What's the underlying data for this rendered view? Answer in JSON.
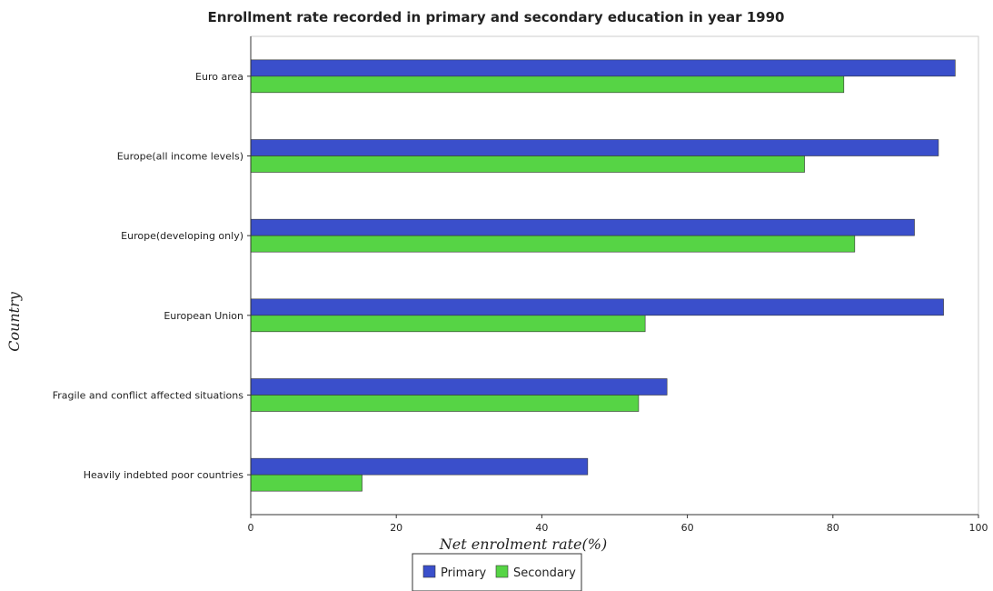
{
  "chart_data": {
    "type": "bar",
    "orientation": "horizontal",
    "title": "Enrollment rate recorded in primary and secondary education in year 1990",
    "xlabel": "Net enrolment rate(%)",
    "ylabel": "Country",
    "xlim": [
      0,
      100
    ],
    "xticks": [
      0,
      20,
      40,
      60,
      80,
      100
    ],
    "grid": false,
    "legend_position": "bottom-center",
    "categories": [
      "Euro area",
      "Europe(all income levels)",
      "Europe(developing only)",
      "European Union",
      "Fragile and conflict affected situations",
      "Heavily indebted poor countries"
    ],
    "series": [
      {
        "name": "Primary",
        "color": "#3a4fcb",
        "values": [
          96.8,
          94.5,
          91.2,
          95.2,
          57.2,
          46.3
        ]
      },
      {
        "name": "Secondary",
        "color": "#56d445",
        "values": [
          81.5,
          76.1,
          83.0,
          54.2,
          53.3,
          15.3
        ]
      }
    ]
  }
}
